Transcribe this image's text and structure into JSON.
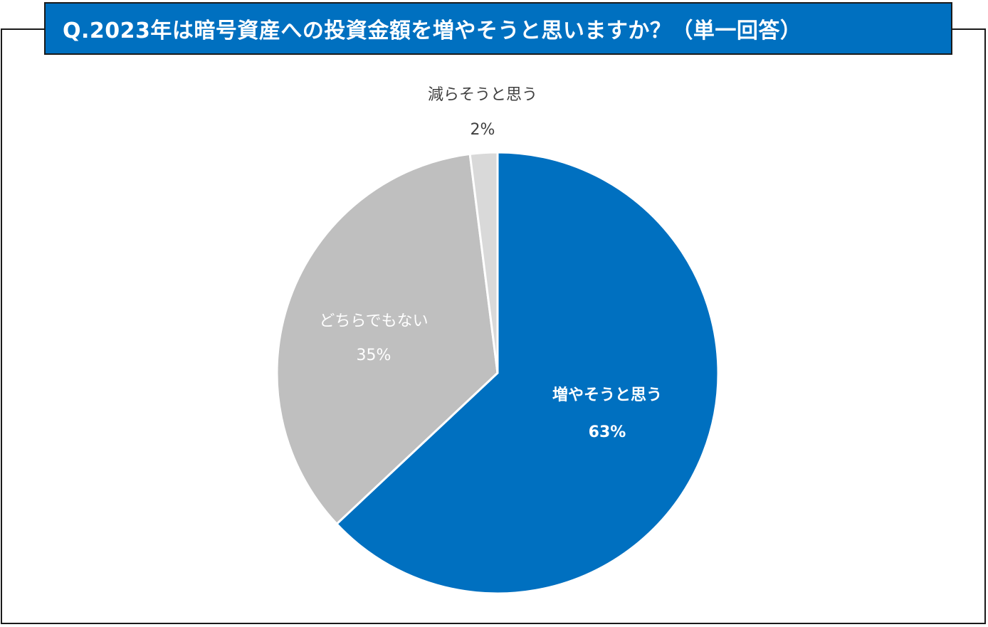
{
  "title": "Q.2023年は暗号資産への投資金額を増やそうと思いますか？（単一回答）",
  "chart_data": {
    "type": "pie",
    "title": "Q.2023年は暗号資産への投資金額を増やそうと思いますか？（単一回答）",
    "slices": [
      {
        "label": "増やそうと思う",
        "value": 63,
        "value_label": "63%",
        "color": "#0070c0",
        "text_color": "#ffffff",
        "bold": true
      },
      {
        "label": "どちらでもない",
        "value": 35,
        "value_label": "35%",
        "color": "#bfbfbf",
        "text_color": "#ffffff",
        "bold": false
      },
      {
        "label": "減らそうと思う",
        "value": 2,
        "value_label": "2%",
        "color": "#d9d9d9",
        "text_color": "#404040",
        "bold": false
      }
    ],
    "start_angle": "12 o'clock",
    "direction": "clockwise",
    "legend": "none"
  }
}
